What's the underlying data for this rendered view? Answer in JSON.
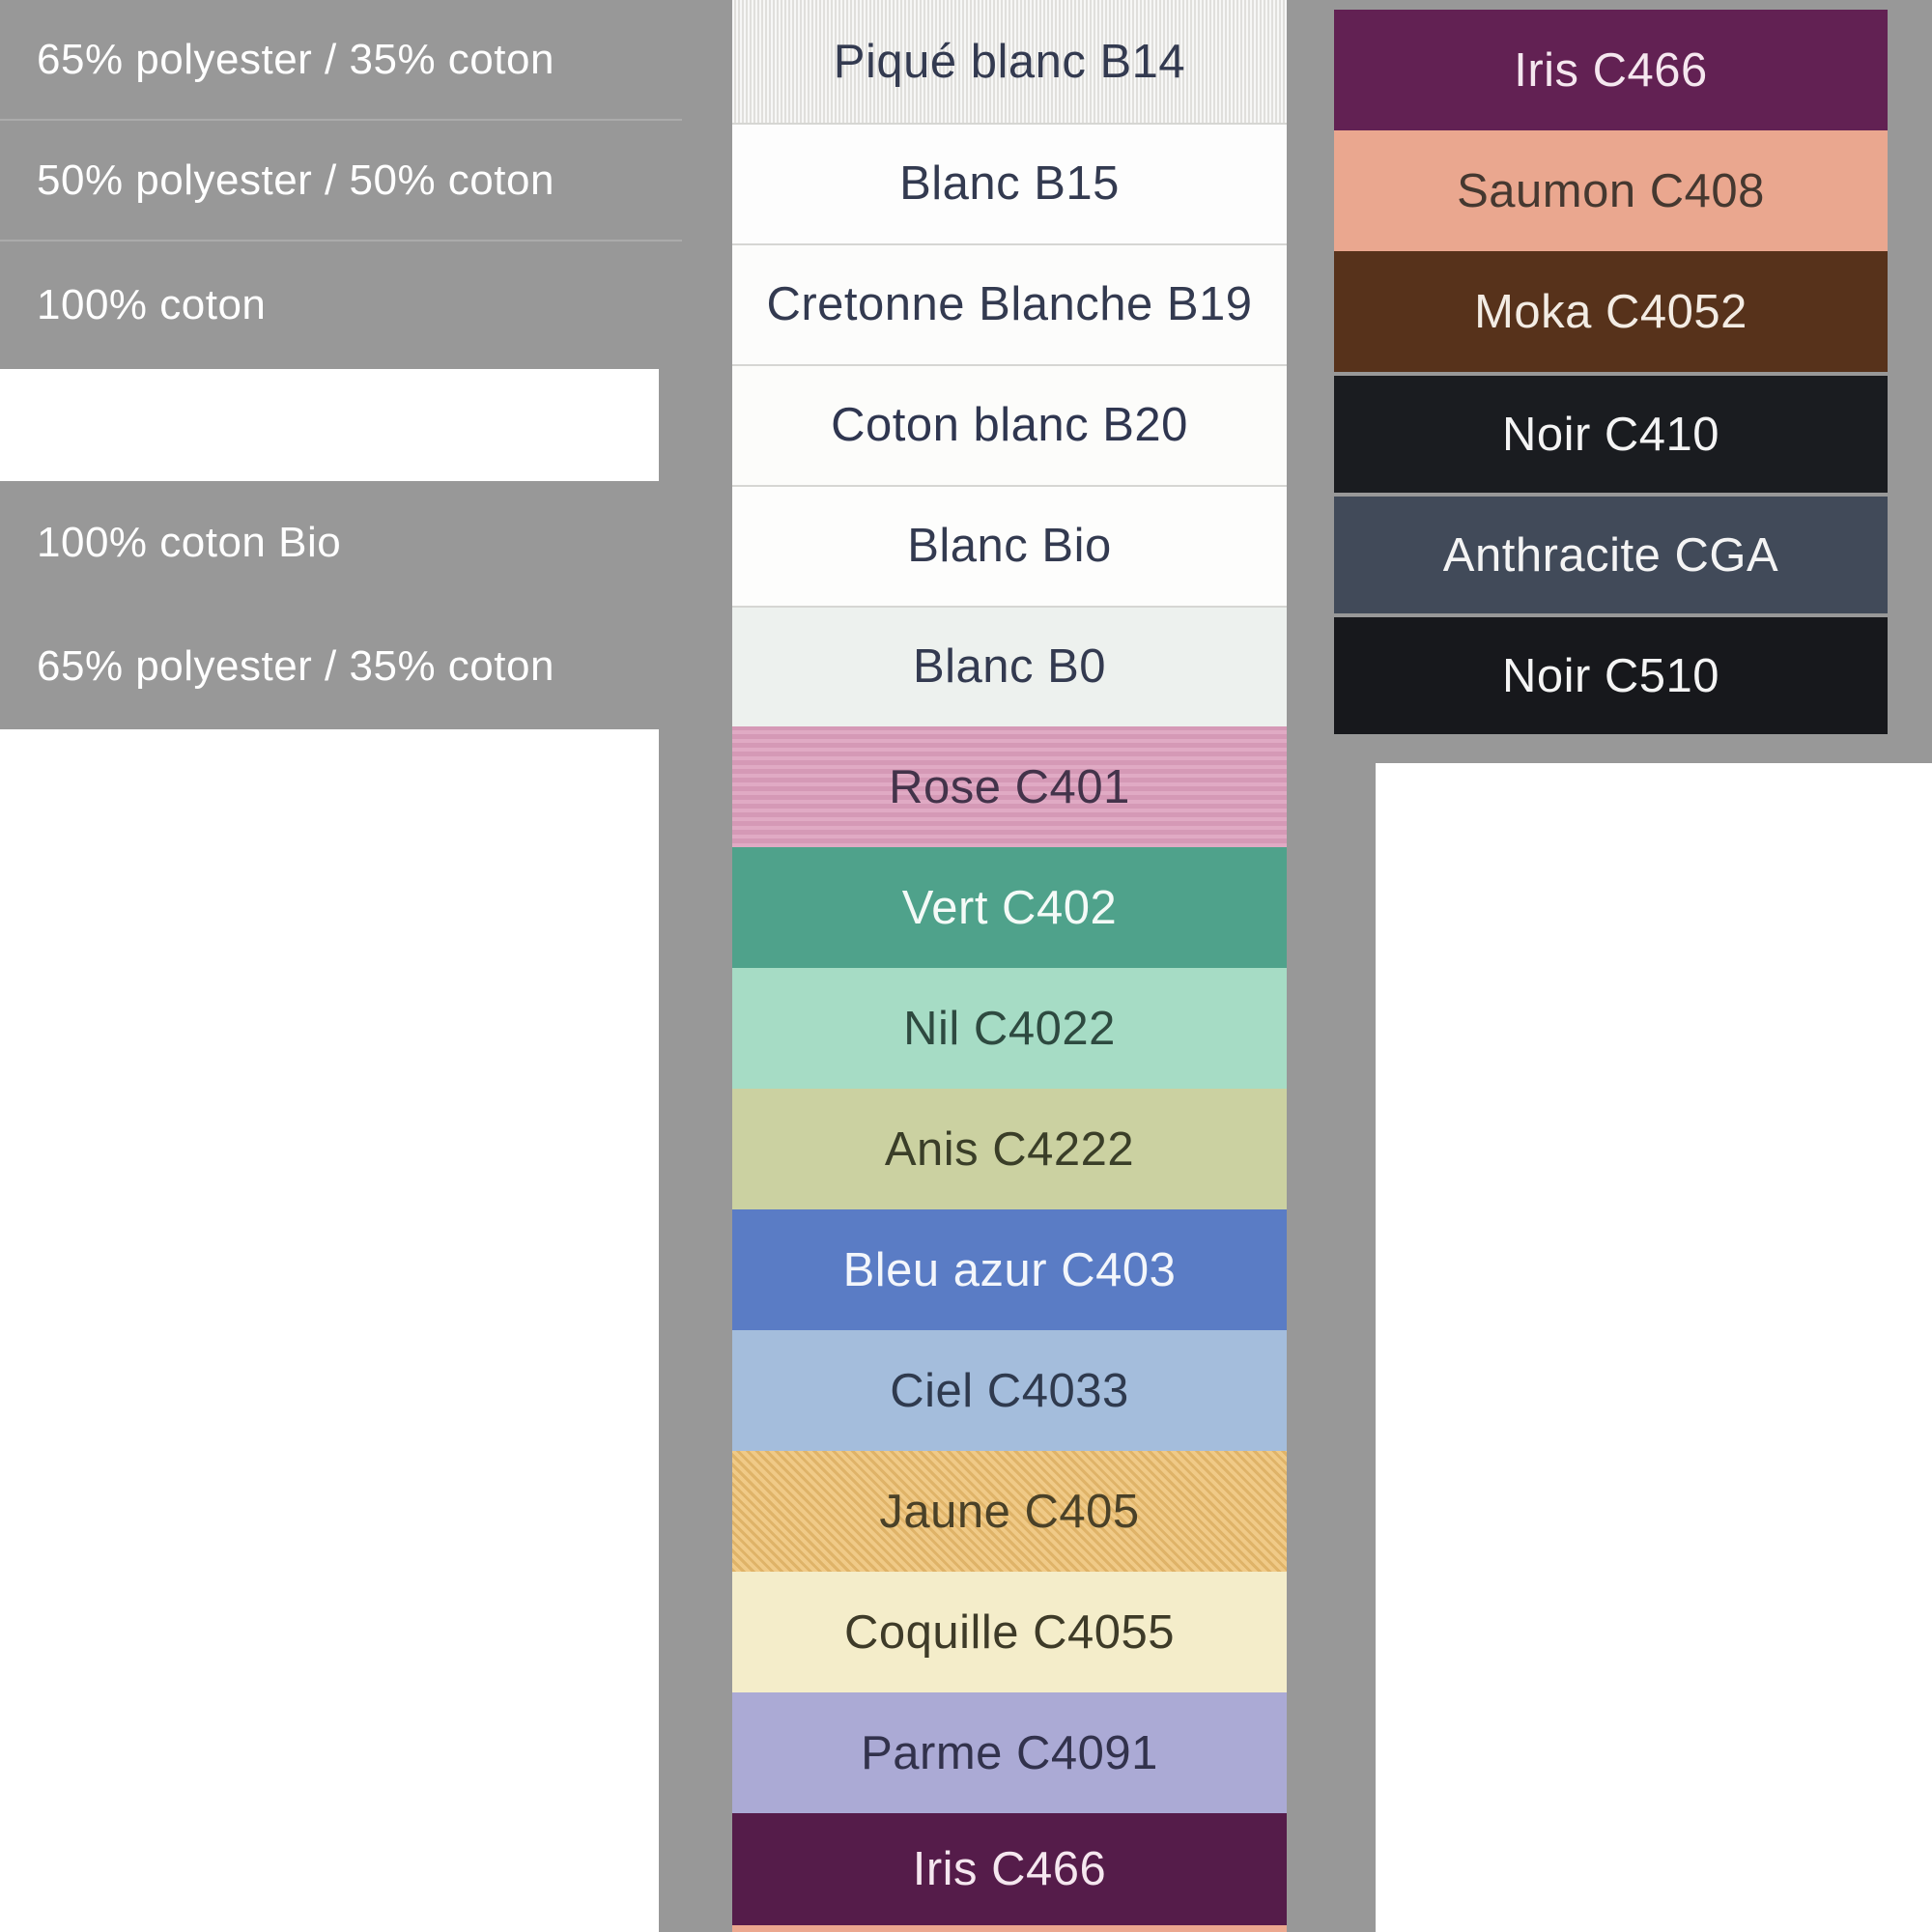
{
  "background_color": "#989898",
  "composition_panel": {
    "text_color": "#ffffff",
    "rows": [
      {
        "label": "65% polyester / 35% coton",
        "blank": false
      },
      {
        "label": "50% polyester / 50% coton",
        "blank": false
      },
      {
        "label": "100% coton",
        "blank": false
      },
      {
        "label": "",
        "blank": true
      },
      {
        "label": "100% coton Bio",
        "blank": false
      },
      {
        "label": "65% polyester / 35% coton",
        "blank": false
      }
    ]
  },
  "swatches": {
    "middle_column": [
      {
        "name": "Piqué blanc B14",
        "color": "#eeedea",
        "text": "#333a50",
        "texture": "ribs"
      },
      {
        "name": "Blanc B15",
        "color": "#fdfdfd",
        "text": "#333a50"
      },
      {
        "name": "Cretonne Blanche B19",
        "color": "#fcfcfb",
        "text": "#333a50"
      },
      {
        "name": "Coton blanc B20",
        "color": "#fcfcfa",
        "text": "#2f3650"
      },
      {
        "name": "Blanc Bio",
        "color": "#fdfdfc",
        "text": "#333a50"
      },
      {
        "name": "Blanc B0",
        "color": "#edf1ee",
        "text": "#333a50"
      },
      {
        "name": "Rose C401",
        "color": "#dca0bd",
        "text": "#43334a",
        "texture": "slub"
      },
      {
        "name": "Vert C402",
        "color": "#4fa28b",
        "text": "#f4faf7"
      },
      {
        "name": "Nil C4022",
        "color": "#a6dcc5",
        "text": "#2e4a40"
      },
      {
        "name": "Anis C4222",
        "color": "#cbd1a1",
        "text": "#3a3e28"
      },
      {
        "name": "Bleu azur C403",
        "color": "#5a7cc5",
        "text": "#f3f6fb"
      },
      {
        "name": "Ciel C4033",
        "color": "#a4bddc",
        "text": "#2f3a4e"
      },
      {
        "name": "Jaune C405",
        "color": "#edc276",
        "text": "#4a4128",
        "texture": "twill"
      },
      {
        "name": "Coquille C4055",
        "color": "#f4edca",
        "text": "#3e3b28"
      },
      {
        "name": "Parme C4091",
        "color": "#abaad5",
        "text": "#32324c"
      },
      {
        "name": "Iris C466",
        "color": "#551c4a",
        "text": "#f5e7ef"
      },
      {
        "name": "",
        "color": "#eba78e",
        "partial": true
      }
    ],
    "right_column": [
      {
        "name": "Iris C466",
        "color": "#622153",
        "text": "#f5e7ef"
      },
      {
        "name": "Saumon C408",
        "color": "#eaa78f",
        "text": "#453830"
      },
      {
        "name": "Moka C4052",
        "color": "#57321b",
        "text": "#f3ece4"
      },
      {
        "name": "Noir C410",
        "color": "#1a1c20",
        "text": "#f4f4f4"
      },
      {
        "name": "Anthracite CGA",
        "color": "#414a59",
        "text": "#f4f4f4"
      },
      {
        "name": "Noir C510",
        "color": "#17181c",
        "text": "#f4f4f4"
      }
    ]
  }
}
